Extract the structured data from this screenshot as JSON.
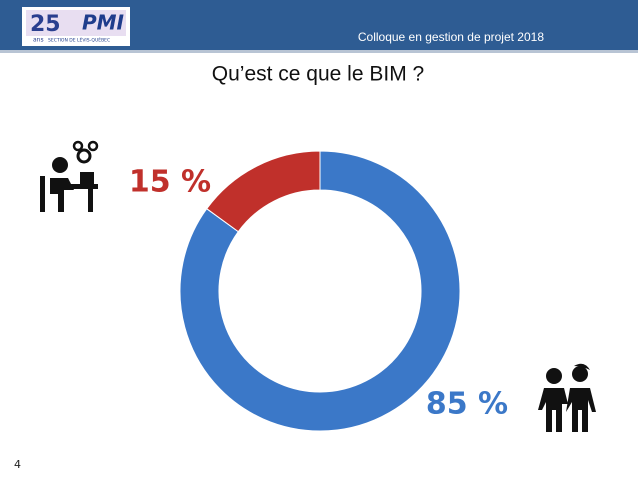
{
  "header": {
    "logo_number": "25",
    "logo_ans": "ans",
    "logo_brand": "PMI",
    "logo_section": "SECTION DE LÉVIS-QUÉBEC",
    "event": "Colloque en gestion de projet 2018"
  },
  "page_number": "4",
  "chart_data": {
    "type": "donut",
    "title": "Qu’est ce que le BIM ?",
    "values": [
      85,
      15
    ],
    "value_labels": [
      "85 %",
      "15 %"
    ],
    "colors": [
      "#3b78c8",
      "#c0302b"
    ]
  }
}
